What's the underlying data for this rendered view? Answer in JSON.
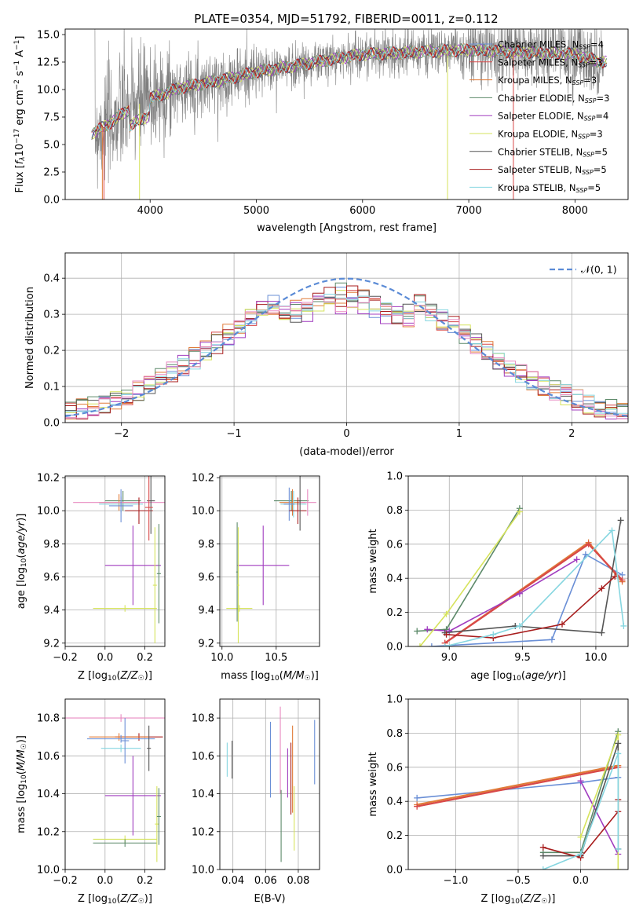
{
  "title": "PLATE=0354, MJD=51792, FIBERID=0011, z=0.112",
  "colors": {
    "chabrier_miles": "#6a8fd6",
    "salpeter_miles": "#d84848",
    "kroupa_miles": "#e07b39",
    "chabrier_elodie": "#5d8a6a",
    "salpeter_elodie": "#a03cbf",
    "kroupa_elodie": "#d6e35c",
    "chabrier_stelib": "#555555",
    "salpeter_stelib": "#a81d1d",
    "kroupa_stelib": "#86d6e0",
    "data": "#7f7f7f",
    "gauss": "#5b8bd6",
    "pink": "#e88ac0"
  },
  "chart_data": [
    {
      "id": "spectrum",
      "type": "line",
      "xlabel": "wavelength [Angstrom, rest frame]",
      "ylabel": "Flux [$f_\\lambda 10^{-17}$ erg cm$^{-2}$ s$^{-1}$ A$^{-1}$]",
      "xlim": [
        3200,
        8500
      ],
      "ylim": [
        0,
        15.5
      ],
      "xticks": [
        "4000",
        "5000",
        "6000",
        "7000",
        "8000"
      ],
      "yticks": [
        "0.0",
        "2.5",
        "5.0",
        "7.5",
        "10.0",
        "12.5",
        "15.0"
      ],
      "legend_position": "top-right",
      "legend": [
        {
          "label": "Chabrier MILES, N",
          "sub": "SSP",
          "count": "=4",
          "color": "#6a8fd6"
        },
        {
          "label": "Salpeter MILES, N",
          "sub": "SSP",
          "count": "=3",
          "color": "#d84848"
        },
        {
          "label": "Kroupa MILES, N",
          "sub": "SSP",
          "count": "=3",
          "color": "#e07b39"
        },
        {
          "label": "Chabrier ELODIE, N",
          "sub": "SSP",
          "count": "=3",
          "color": "#5d8a6a"
        },
        {
          "label": "Salpeter ELODIE, N",
          "sub": "SSP",
          "count": "=4",
          "color": "#a03cbf"
        },
        {
          "label": "Kroupa ELODIE, N",
          "sub": "SSP",
          "count": "=3",
          "color": "#d6e35c"
        },
        {
          "label": "Chabrier STELIB, N",
          "sub": "SSP",
          "count": "=5",
          "color": "#555555"
        },
        {
          "label": "Salpeter STELIB, N",
          "sub": "SSP",
          "count": "=5",
          "color": "#a81d1d"
        },
        {
          "label": "Kroupa STELIB, N",
          "sub": "SSP",
          "count": "=5",
          "color": "#86d6e0"
        }
      ],
      "continuum": [
        [
          3450,
          6.0
        ],
        [
          3600,
          6.8
        ],
        [
          3800,
          8.2
        ],
        [
          4000,
          9.2
        ],
        [
          4300,
          10.2
        ],
        [
          4700,
          10.9
        ],
        [
          5000,
          11.6
        ],
        [
          5500,
          12.4
        ],
        [
          6000,
          13.2
        ],
        [
          6500,
          13.4
        ],
        [
          7000,
          13.6
        ],
        [
          7500,
          13.4
        ],
        [
          8000,
          13.2
        ],
        [
          8250,
          12.5
        ]
      ],
      "data_range": [
        3480,
        8270
      ],
      "model_range": [
        3450,
        8300
      ]
    },
    {
      "id": "residuals",
      "type": "line",
      "xlabel": "(data-model)/error",
      "ylabel": "Normed distribution",
      "xlim": [
        -2.5,
        2.5
      ],
      "ylim": [
        0,
        0.47
      ],
      "xticks": [
        "−2",
        "−1",
        "0",
        "1",
        "2"
      ],
      "yticks": [
        "0.0",
        "0.1",
        "0.2",
        "0.3",
        "0.4"
      ],
      "grid": true,
      "legend_position": "top-right",
      "gauss_label": "𝒩(0, 1)",
      "bins": 50
    },
    {
      "id": "age_vs_Z",
      "type": "scatter",
      "xlabel": "Z [log10(Z/Z☉)]",
      "ylabel": "age [log10(age/yr)]",
      "xlim": [
        -0.2,
        0.3
      ],
      "ylim": [
        9.18,
        10.21
      ],
      "xticks": [
        "−0.2",
        "0.0",
        "0.2"
      ],
      "yticks": [
        "9.2",
        "9.4",
        "9.6",
        "9.8",
        "10.0",
        "10.2"
      ],
      "grid": true,
      "points": [
        {
          "x": 0.09,
          "y": 10.06,
          "ex": 0.09,
          "ey": 0.06,
          "c": "#5d8a6a"
        },
        {
          "x": 0.07,
          "y": 10.05,
          "ex": 0.1,
          "ey": 0.05,
          "c": "#e07b39"
        },
        {
          "x": 0.08,
          "y": 10.04,
          "ex": 0.11,
          "ey": 0.05,
          "c": "#86d6e0"
        },
        {
          "x": 0.08,
          "y": 10.05,
          "ex": 0.24,
          "ey": 0.03,
          "c": "#e88ac0"
        },
        {
          "x": 0.08,
          "y": 10.03,
          "ex": 0.06,
          "ey": 0.1,
          "c": "#6a8fd6"
        },
        {
          "x": 0.17,
          "y": 10.0,
          "ex": 0.07,
          "ey": 0.08,
          "c": "#a81d1d"
        },
        {
          "x": 0.23,
          "y": 10.06,
          "ex": 0.02,
          "ey": 0.2,
          "c": "#555555"
        },
        {
          "x": 0.22,
          "y": 10.02,
          "ex": 0.02,
          "ey": 0.2,
          "c": "#d84848"
        },
        {
          "x": 0.14,
          "y": 9.67,
          "ex": 0.14,
          "ey": 0.24,
          "c": "#a03cbf"
        },
        {
          "x": 0.1,
          "y": 9.41,
          "ex": 0.16,
          "ey": 0.02,
          "c": "#d6e35c"
        },
        {
          "x": 0.27,
          "y": 9.62,
          "ex": 0.01,
          "ey": 0.3,
          "c": "#5d8a6a"
        },
        {
          "x": 0.25,
          "y": 9.55,
          "ex": 0.01,
          "ey": 0.35,
          "c": "#d6e35c"
        }
      ]
    },
    {
      "id": "age_vs_mass",
      "type": "scatter",
      "xlabel": "mass [log10(M/M☉)]",
      "xlim": [
        9.98,
        10.9
      ],
      "ylim": [
        9.18,
        10.21
      ],
      "xticks": [
        "10.0",
        "10.5"
      ],
      "yticks": [
        "9.2",
        "9.4",
        "9.6",
        "9.8",
        "10.0",
        "10.2"
      ],
      "grid": true,
      "points": [
        {
          "x": 10.64,
          "y": 10.06,
          "ex": 0.16,
          "ey": 0.06,
          "c": "#5d8a6a"
        },
        {
          "x": 10.65,
          "y": 10.05,
          "ex": 0.12,
          "ey": 0.08,
          "c": "#e07b39"
        },
        {
          "x": 10.66,
          "y": 10.04,
          "ex": 0.12,
          "ey": 0.08,
          "c": "#86d6e0"
        },
        {
          "x": 10.79,
          "y": 10.05,
          "ex": 0.08,
          "ey": 0.08,
          "c": "#e88ac0"
        },
        {
          "x": 10.62,
          "y": 10.04,
          "ex": 0.05,
          "ey": 0.1,
          "c": "#6a8fd6"
        },
        {
          "x": 10.7,
          "y": 10.0,
          "ex": 0.08,
          "ey": 0.08,
          "c": "#a81d1d"
        },
        {
          "x": 10.72,
          "y": 10.06,
          "ex": 0.01,
          "ey": 0.18,
          "c": "#555555"
        },
        {
          "x": 10.38,
          "y": 9.67,
          "ex": 0.24,
          "ey": 0.24,
          "c": "#a03cbf"
        },
        {
          "x": 10.16,
          "y": 9.41,
          "ex": 0.12,
          "ey": 0.02,
          "c": "#d6e35c"
        },
        {
          "x": 10.14,
          "y": 9.63,
          "ex": 0.01,
          "ey": 0.3,
          "c": "#5d8a6a"
        },
        {
          "x": 10.15,
          "y": 9.55,
          "ex": 0.01,
          "ey": 0.35,
          "c": "#d6e35c"
        }
      ]
    },
    {
      "id": "mass_weight_vs_age",
      "type": "line",
      "xlabel": "age [log10(age/yr)]",
      "ylabel": "mass weight",
      "xlim": [
        8.72,
        10.22
      ],
      "ylim": [
        0,
        1.0
      ],
      "xticks": [
        "9.0",
        "9.5",
        "10.0"
      ],
      "yticks": [
        "0.0",
        "0.2",
        "0.4",
        "0.6",
        "0.8",
        "1.0"
      ],
      "grid": true,
      "series": [
        {
          "c": "#6a8fd6",
          "pts": [
            [
              8.88,
              0.0
            ],
            [
              9.7,
              0.04
            ],
            [
              9.93,
              0.54
            ],
            [
              10.18,
              0.42
            ]
          ]
        },
        {
          "c": "#e07b39",
          "pts": [
            [
              8.97,
              0.02
            ],
            [
              9.95,
              0.61
            ],
            [
              10.18,
              0.38
            ]
          ]
        },
        {
          "c": "#d84848",
          "pts": [
            [
              8.97,
              0.02
            ],
            [
              9.95,
              0.6
            ],
            [
              10.18,
              0.39
            ]
          ]
        },
        {
          "c": "#5d8a6a",
          "pts": [
            [
              8.78,
              0.09
            ],
            [
              8.98,
              0.1
            ],
            [
              9.48,
              0.81
            ]
          ]
        },
        {
          "c": "#a03cbf",
          "pts": [
            [
              8.85,
              0.1
            ],
            [
              9.0,
              0.09
            ],
            [
              9.48,
              0.31
            ],
            [
              9.87,
              0.51
            ]
          ]
        },
        {
          "c": "#d6e35c",
          "pts": [
            [
              8.8,
              0.0
            ],
            [
              8.98,
              0.19
            ],
            [
              9.48,
              0.79
            ]
          ]
        },
        {
          "c": "#555555",
          "pts": [
            [
              8.97,
              0.08
            ],
            [
              9.45,
              0.12
            ],
            [
              10.04,
              0.08
            ],
            [
              10.17,
              0.74
            ]
          ]
        },
        {
          "c": "#a81d1d",
          "pts": [
            [
              8.98,
              0.07
            ],
            [
              9.3,
              0.05
            ],
            [
              9.77,
              0.13
            ],
            [
              10.04,
              0.34
            ],
            [
              10.13,
              0.41
            ]
          ]
        },
        {
          "c": "#86d6e0",
          "pts": [
            [
              8.97,
              0.0
            ],
            [
              9.3,
              0.07
            ],
            [
              9.48,
              0.12
            ],
            [
              10.11,
              0.68
            ],
            [
              10.19,
              0.12
            ]
          ]
        }
      ]
    },
    {
      "id": "mass_vs_Z",
      "type": "scatter",
      "xlabel": "Z [log10(Z/Z☉)]",
      "ylabel": "mass [log10(M/M☉)]",
      "xlim": [
        -0.2,
        0.3
      ],
      "ylim": [
        10.0,
        10.9
      ],
      "xticks": [
        "−0.2",
        "0.0",
        "0.2"
      ],
      "yticks": [
        "10.0",
        "10.2",
        "10.4",
        "10.6",
        "10.8"
      ],
      "grid": true,
      "points": [
        {
          "x": 0.17,
          "y": 10.7,
          "ex": 0.12,
          "ey": 0.02,
          "c": "#a81d1d"
        },
        {
          "x": 0.07,
          "y": 10.7,
          "ex": 0.15,
          "ey": 0.02,
          "c": "#e07b39"
        },
        {
          "x": 0.08,
          "y": 10.69,
          "ex": 0.17,
          "ey": 0.02,
          "c": "#6a8fd6"
        },
        {
          "x": 0.08,
          "y": 10.64,
          "ex": 0.1,
          "ey": 0.02,
          "c": "#86d6e0"
        },
        {
          "x": 0.08,
          "y": 10.8,
          "ex": 0.28,
          "ey": 0.02,
          "c": "#e88ac0"
        },
        {
          "x": 0.1,
          "y": 10.68,
          "ex": 0.02,
          "ey": 0.12,
          "c": "#6a8fd6"
        },
        {
          "x": 0.22,
          "y": 10.64,
          "ex": 0.01,
          "ey": 0.12,
          "c": "#555555"
        },
        {
          "x": 0.14,
          "y": 10.39,
          "ex": 0.14,
          "ey": 0.21,
          "c": "#a03cbf"
        },
        {
          "x": 0.1,
          "y": 10.16,
          "ex": 0.16,
          "ey": 0.02,
          "c": "#d6e35c"
        },
        {
          "x": 0.1,
          "y": 10.14,
          "ex": 0.16,
          "ey": 0.02,
          "c": "#5d8a6a"
        },
        {
          "x": 0.26,
          "y": 10.24,
          "ex": 0.01,
          "ey": 0.2,
          "c": "#d6e35c"
        },
        {
          "x": 0.27,
          "y": 10.28,
          "ex": 0.01,
          "ey": 0.15,
          "c": "#5d8a6a"
        }
      ]
    },
    {
      "id": "mass_vs_EBV",
      "type": "scatter",
      "xlabel": "E(B-V)",
      "xlim": [
        0.032,
        0.093
      ],
      "ylim": [
        10.0,
        10.9
      ],
      "xticks": [
        "0.04",
        "0.06",
        "0.08"
      ],
      "yticks": [
        "10.0",
        "10.2",
        "10.4",
        "10.6",
        "10.8"
      ],
      "grid": true,
      "points": [
        {
          "x": 0.0365,
          "y": 10.58,
          "ex": 0,
          "ey": 0.09,
          "c": "#86d6e0"
        },
        {
          "x": 0.0395,
          "y": 10.58,
          "ex": 0,
          "ey": 0.1,
          "c": "#555555"
        },
        {
          "x": 0.063,
          "y": 10.58,
          "ex": 0,
          "ey": 0.2,
          "c": "#6a8fd6"
        },
        {
          "x": 0.069,
          "y": 10.63,
          "ex": 0,
          "ey": 0.23,
          "c": "#e88ac0"
        },
        {
          "x": 0.0755,
          "y": 10.48,
          "ex": 0,
          "ey": 0.19,
          "c": "#a81d1d"
        },
        {
          "x": 0.0735,
          "y": 10.51,
          "ex": 0,
          "ey": 0.13,
          "c": "#a03cbf"
        },
        {
          "x": 0.0765,
          "y": 10.53,
          "ex": 0,
          "ey": 0.23,
          "c": "#e07b39"
        },
        {
          "x": 0.0695,
          "y": 10.23,
          "ex": 0,
          "ey": 0.19,
          "c": "#5d8a6a"
        },
        {
          "x": 0.0775,
          "y": 10.27,
          "ex": 0,
          "ey": 0.17,
          "c": "#d6e35c"
        },
        {
          "x": 0.09,
          "y": 10.62,
          "ex": 0,
          "ey": 0.17,
          "c": "#6a8fd6"
        }
      ]
    },
    {
      "id": "mass_weight_vs_Z",
      "type": "line",
      "xlabel": "Z [log10(Z/Z☉)]",
      "ylabel": "mass weight",
      "xlim": [
        -1.38,
        0.38
      ],
      "ylim": [
        0,
        1.0
      ],
      "xticks": [
        "−1.0",
        "−0.5",
        "0.0"
      ],
      "yticks": [
        "0.0",
        "0.2",
        "0.4",
        "0.6",
        "0.8",
        "1.0"
      ],
      "grid": true,
      "series": [
        {
          "c": "#6a8fd6",
          "pts": [
            [
              -1.31,
              0.42
            ],
            [
              0.0,
              0.51
            ],
            [
              0.3,
              0.54
            ]
          ]
        },
        {
          "c": "#e07b39",
          "pts": [
            [
              -1.31,
              0.38
            ],
            [
              0.3,
              0.61
            ]
          ]
        },
        {
          "c": "#d84848",
          "pts": [
            [
              -1.31,
              0.37
            ],
            [
              0.3,
              0.6
            ]
          ]
        },
        {
          "c": "#5d8a6a",
          "pts": [
            [
              -0.3,
              0.1
            ],
            [
              0.0,
              0.1
            ],
            [
              0.3,
              0.81
            ]
          ]
        },
        {
          "c": "#a03cbf",
          "pts": [
            [
              0.0,
              0.52
            ],
            [
              0.3,
              0.09
            ]
          ]
        },
        {
          "c": "#d6e35c",
          "pts": [
            [
              0.0,
              0.19
            ],
            [
              0.3,
              0.79
            ],
            [
              0.3,
              0.0
            ]
          ]
        },
        {
          "c": "#555555",
          "pts": [
            [
              -0.3,
              0.08
            ],
            [
              0.0,
              0.08
            ],
            [
              0.3,
              0.74
            ],
            [
              0.3,
              0.12
            ]
          ]
        },
        {
          "c": "#a81d1d",
          "pts": [
            [
              -0.3,
              0.13
            ],
            [
              0.0,
              0.07
            ],
            [
              0.3,
              0.34
            ],
            [
              0.3,
              0.41
            ]
          ]
        },
        {
          "c": "#86d6e0",
          "pts": [
            [
              -0.3,
              0.0
            ],
            [
              0.0,
              0.09
            ],
            [
              0.3,
              0.68
            ],
            [
              0.3,
              0.12
            ]
          ]
        }
      ]
    }
  ]
}
